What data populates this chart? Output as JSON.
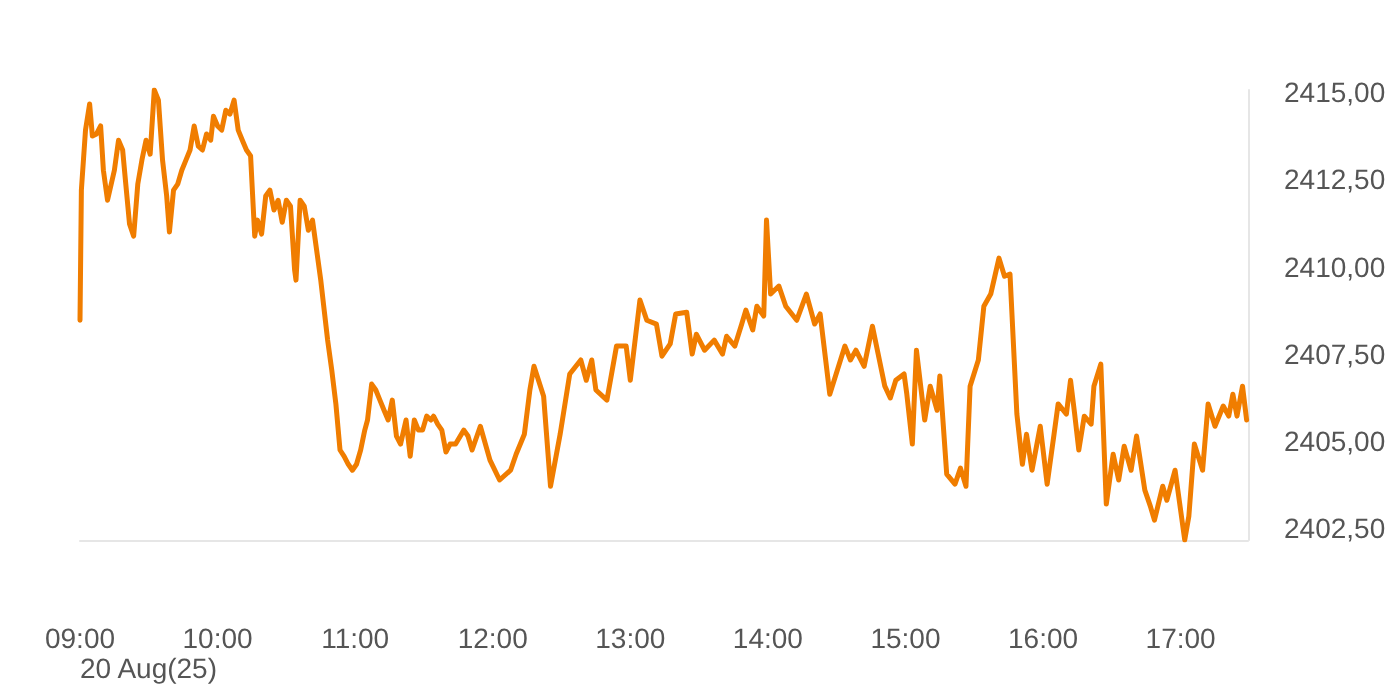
{
  "chart_data": {
    "type": "line",
    "xlabel": "20 Aug(25)",
    "x": [
      9.0,
      9.01,
      9.04,
      9.07,
      9.09,
      9.12,
      9.15,
      9.17,
      9.2,
      9.25,
      9.28,
      9.31,
      9.33,
      9.36,
      9.39,
      9.42,
      9.45,
      9.48,
      9.51,
      9.54,
      9.57,
      9.6,
      9.63,
      9.65,
      9.68,
      9.71,
      9.74,
      9.77,
      9.8,
      9.83,
      9.86,
      9.89,
      9.92,
      9.95,
      9.97,
      10.0,
      10.03,
      10.06,
      10.09,
      10.12,
      10.15,
      10.18,
      10.21,
      10.24,
      10.27,
      10.29,
      10.32,
      10.35,
      10.38,
      10.41,
      10.44,
      10.47,
      10.5,
      10.53,
      10.56,
      10.57,
      10.6,
      10.63,
      10.66,
      10.69,
      10.72,
      10.75,
      10.77,
      10.8,
      10.83,
      10.86,
      10.89,
      10.92,
      10.95,
      10.98,
      11.01,
      11.04,
      11.07,
      11.09,
      11.12,
      11.15,
      11.18,
      11.21,
      11.24,
      11.27,
      11.3,
      11.33,
      11.37,
      11.4,
      11.43,
      11.46,
      11.49,
      11.52,
      11.55,
      11.57,
      11.6,
      11.63,
      11.66,
      11.69,
      11.73,
      11.79,
      11.82,
      11.85,
      11.91,
      11.98,
      12.05,
      12.13,
      12.17,
      12.23,
      12.27,
      12.3,
      12.37,
      12.42,
      12.49,
      12.56,
      12.64,
      12.68,
      12.72,
      12.75,
      12.83,
      12.9,
      12.97,
      13.0,
      13.07,
      13.12,
      13.19,
      13.23,
      13.29,
      13.33,
      13.41,
      13.45,
      13.48,
      13.54,
      13.61,
      13.67,
      13.7,
      13.76,
      13.81,
      13.84,
      13.89,
      13.92,
      13.97,
      13.99,
      14.02,
      14.08,
      14.13,
      14.21,
      14.28,
      14.34,
      14.38,
      14.45,
      14.56,
      14.6,
      14.64,
      14.7,
      14.76,
      14.85,
      14.89,
      14.93,
      14.99,
      15.01,
      15.05,
      15.08,
      15.14,
      15.18,
      15.23,
      15.25,
      15.3,
      15.36,
      15.4,
      15.44,
      15.47,
      15.53,
      15.57,
      15.62,
      15.68,
      15.72,
      15.76,
      15.81,
      15.85,
      15.88,
      15.92,
      15.98,
      16.03,
      16.08,
      16.11,
      16.17,
      16.2,
      16.23,
      16.26,
      16.3,
      16.35,
      16.37,
      16.42,
      16.46,
      16.51,
      16.55,
      16.59,
      16.64,
      16.68,
      16.74,
      16.78,
      16.81,
      16.87,
      16.9,
      16.96,
      17.0,
      17.03,
      17.06,
      17.1,
      17.16,
      17.2,
      17.25,
      17.31,
      17.35,
      17.38,
      17.41,
      17.45,
      17.48,
      17.49
    ],
    "series": [
      {
        "color": "#f07d00",
        "values": [
          2408.46,
          2412.19,
          2413.91,
          2414.66,
          2413.74,
          2413.8,
          2414.03,
          2412.76,
          2411.9,
          2412.76,
          2413.62,
          2413.34,
          2412.48,
          2411.22,
          2410.87,
          2412.36,
          2413.05,
          2413.62,
          2413.22,
          2415.06,
          2414.77,
          2413.05,
          2412.02,
          2410.99,
          2412.19,
          2412.36,
          2412.76,
          2413.05,
          2413.34,
          2414.03,
          2413.45,
          2413.34,
          2413.8,
          2413.62,
          2414.31,
          2414.03,
          2413.91,
          2414.48,
          2414.37,
          2414.77,
          2413.91,
          2413.62,
          2413.34,
          2413.17,
          2410.87,
          2411.33,
          2410.93,
          2412.02,
          2412.19,
          2411.62,
          2411.9,
          2411.27,
          2411.9,
          2411.73,
          2409.9,
          2409.61,
          2411.9,
          2411.73,
          2411.04,
          2411.33,
          2410.47,
          2409.61,
          2408.92,
          2407.89,
          2407.03,
          2406.06,
          2404.74,
          2404.56,
          2404.33,
          2404.16,
          2404.33,
          2404.74,
          2405.31,
          2405.6,
          2406.63,
          2406.46,
          2406.17,
          2405.88,
          2405.6,
          2406.17,
          2405.14,
          2404.91,
          2405.6,
          2404.56,
          2405.6,
          2405.31,
          2405.31,
          2405.71,
          2405.6,
          2405.71,
          2405.48,
          2405.31,
          2404.68,
          2404.91,
          2404.91,
          2405.31,
          2405.14,
          2404.74,
          2405.42,
          2404.45,
          2403.88,
          2404.16,
          2404.62,
          2405.19,
          2406.46,
          2407.14,
          2406.28,
          2403.7,
          2405.19,
          2406.92,
          2407.32,
          2406.74,
          2407.32,
          2406.46,
          2406.17,
          2407.72,
          2407.72,
          2406.74,
          2409.04,
          2408.46,
          2408.35,
          2407.43,
          2407.78,
          2408.64,
          2408.69,
          2407.49,
          2408.06,
          2407.6,
          2407.89,
          2407.49,
          2408.0,
          2407.72,
          2408.35,
          2408.75,
          2408.18,
          2408.86,
          2408.58,
          2411.33,
          2409.21,
          2409.44,
          2408.86,
          2408.46,
          2409.21,
          2408.35,
          2408.64,
          2406.34,
          2407.72,
          2407.32,
          2407.6,
          2407.14,
          2408.29,
          2406.57,
          2406.23,
          2406.74,
          2406.92,
          2406.34,
          2404.91,
          2407.6,
          2405.6,
          2406.57,
          2405.88,
          2406.86,
          2404.05,
          2403.76,
          2404.22,
          2403.7,
          2406.57,
          2407.32,
          2408.86,
          2409.21,
          2410.24,
          2409.72,
          2409.78,
          2405.77,
          2404.33,
          2405.19,
          2404.16,
          2405.42,
          2403.76,
          2405.19,
          2406.06,
          2405.77,
          2406.74,
          2405.77,
          2404.74,
          2405.71,
          2405.48,
          2406.57,
          2407.2,
          2403.19,
          2404.62,
          2403.88,
          2404.85,
          2404.16,
          2405.14,
          2403.59,
          2403.13,
          2402.73,
          2403.7,
          2403.3,
          2404.16,
          2403.02,
          2402.16,
          2402.84,
          2404.91,
          2404.16,
          2406.06,
          2405.42,
          2406.0,
          2405.71,
          2406.34,
          2405.71,
          2406.57,
          2405.6,
          2405.6
        ]
      }
    ],
    "xlim": [
      9,
      17.49
    ],
    "xticks": [
      {
        "value": 9,
        "label": "09:00"
      },
      {
        "value": 10,
        "label": "10:00"
      },
      {
        "value": 11,
        "label": "11:00"
      },
      {
        "value": 12,
        "label": "12:00"
      },
      {
        "value": 13,
        "label": "13:00"
      },
      {
        "value": 14,
        "label": "14:00"
      },
      {
        "value": 15,
        "label": "15:00"
      },
      {
        "value": 16,
        "label": "16:00"
      },
      {
        "value": 17,
        "label": "17:00"
      }
    ],
    "ylim": [
      2402.16,
      2415.06
    ],
    "yticks": [
      {
        "value": 2402.5,
        "label": "2402,50"
      },
      {
        "value": 2405,
        "label": "2405,00"
      },
      {
        "value": 2407.5,
        "label": "2407,50"
      },
      {
        "value": 2410,
        "label": "2410,00"
      },
      {
        "value": 2412.5,
        "label": "2412,50"
      },
      {
        "value": 2415,
        "label": "2415,00"
      }
    ],
    "grid": false,
    "marker": "none",
    "line_style": "solid"
  }
}
